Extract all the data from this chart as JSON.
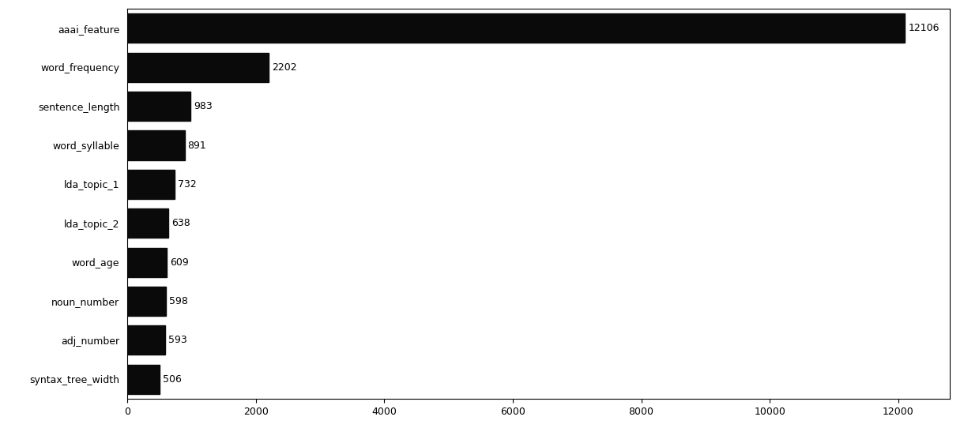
{
  "categories": [
    "syntax_tree_width",
    "adj_number",
    "noun_number",
    "word_age",
    "lda_topic_2",
    "lda_topic_1",
    "word_syllable",
    "sentence_length",
    "word_frequency",
    "aaai_feature"
  ],
  "values": [
    506,
    593,
    598,
    609,
    638,
    732,
    891,
    983,
    2202,
    12106
  ],
  "bar_color": "#0a0a0a",
  "background_color": "#ffffff",
  "xlim": [
    0,
    12800
  ],
  "xticks": [
    0,
    2000,
    4000,
    6000,
    8000,
    10000,
    12000
  ],
  "label_fontsize": 9,
  "tick_fontsize": 9,
  "bar_height": 0.75,
  "value_label_fontsize": 9,
  "show_all_spines": true
}
